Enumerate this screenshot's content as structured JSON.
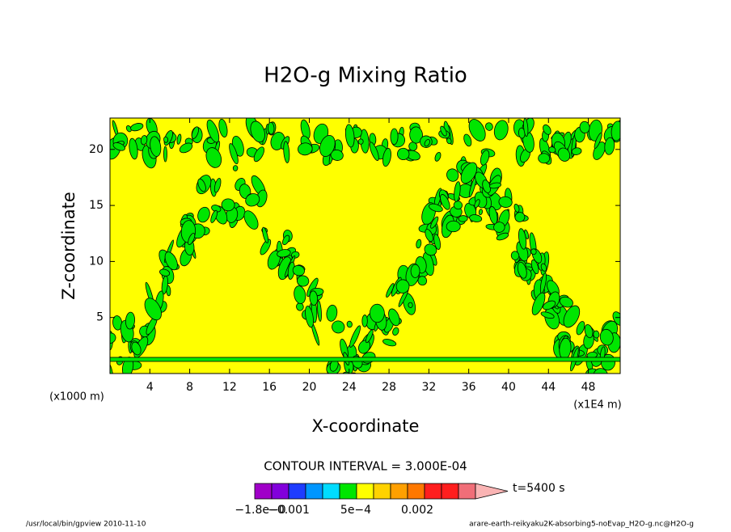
{
  "chart_data": {
    "type": "contour",
    "title": "H2O-g Mixing Ratio",
    "xlabel": "X-coordinate",
    "ylabel": "Z-coordinate",
    "xunit": "(x1E4 m)",
    "yunit": "(x1000 m)",
    "xlim": [
      0,
      51.2
    ],
    "ylim": [
      0,
      22.8
    ],
    "xticks": [
      4,
      8,
      12,
      16,
      20,
      24,
      28,
      32,
      36,
      40,
      44,
      48
    ],
    "yticks": [
      5,
      10,
      15,
      20
    ],
    "annotation": "CONTOUR INTERVAL = 3.000E-04",
    "time": "t=5400 s",
    "colorbar": {
      "colors": [
        "#a000c8",
        "#8200dc",
        "#1e3cff",
        "#0096ff",
        "#00dcff",
        "#00e600",
        "#ffff00",
        "#ffd200",
        "#ffa000",
        "#ff7800",
        "#ff1e1e",
        "#ff1e1e",
        "#f06e78",
        "#fab4b4"
      ],
      "labels": [
        "−1.8e−0",
        "−0.001",
        "5e−4",
        "0.002"
      ]
    },
    "footer_left": "/usr/local/bin/gpview  2010-11-10",
    "footer_right": "arare-earth-reikyaku2K-absorbing5-noEvap_H2O-g.nc@H2O-g"
  }
}
